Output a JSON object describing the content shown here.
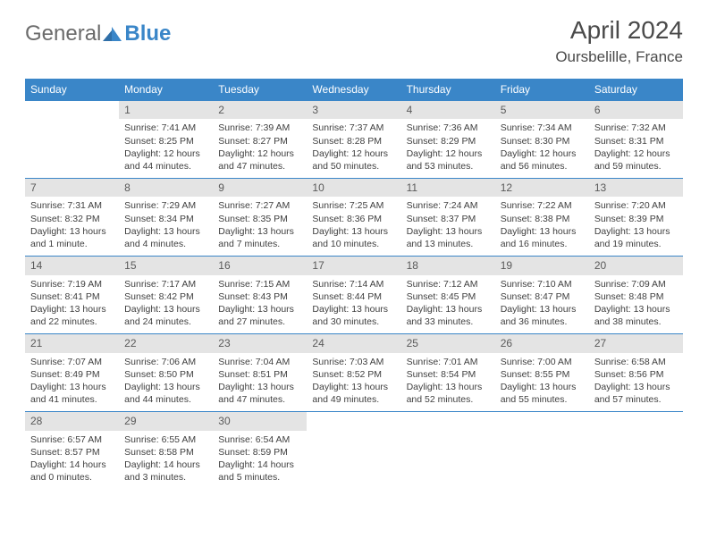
{
  "brand": {
    "part1": "General",
    "part2": "Blue"
  },
  "title": "April 2024",
  "location": "Oursbelille, France",
  "dow_bg": "#3a86c8",
  "dow_color": "#ffffff",
  "daynum_bg": "#e4e4e4",
  "border_color": "#3a86c8",
  "text_color": "#3f3f3f",
  "dow": [
    "Sunday",
    "Monday",
    "Tuesday",
    "Wednesday",
    "Thursday",
    "Friday",
    "Saturday"
  ],
  "weeks": [
    [
      null,
      {
        "n": "1",
        "sr": "7:41 AM",
        "ss": "8:25 PM",
        "dl": "12 hours and 44 minutes."
      },
      {
        "n": "2",
        "sr": "7:39 AM",
        "ss": "8:27 PM",
        "dl": "12 hours and 47 minutes."
      },
      {
        "n": "3",
        "sr": "7:37 AM",
        "ss": "8:28 PM",
        "dl": "12 hours and 50 minutes."
      },
      {
        "n": "4",
        "sr": "7:36 AM",
        "ss": "8:29 PM",
        "dl": "12 hours and 53 minutes."
      },
      {
        "n": "5",
        "sr": "7:34 AM",
        "ss": "8:30 PM",
        "dl": "12 hours and 56 minutes."
      },
      {
        "n": "6",
        "sr": "7:32 AM",
        "ss": "8:31 PM",
        "dl": "12 hours and 59 minutes."
      }
    ],
    [
      {
        "n": "7",
        "sr": "7:31 AM",
        "ss": "8:32 PM",
        "dl": "13 hours and 1 minute."
      },
      {
        "n": "8",
        "sr": "7:29 AM",
        "ss": "8:34 PM",
        "dl": "13 hours and 4 minutes."
      },
      {
        "n": "9",
        "sr": "7:27 AM",
        "ss": "8:35 PM",
        "dl": "13 hours and 7 minutes."
      },
      {
        "n": "10",
        "sr": "7:25 AM",
        "ss": "8:36 PM",
        "dl": "13 hours and 10 minutes."
      },
      {
        "n": "11",
        "sr": "7:24 AM",
        "ss": "8:37 PM",
        "dl": "13 hours and 13 minutes."
      },
      {
        "n": "12",
        "sr": "7:22 AM",
        "ss": "8:38 PM",
        "dl": "13 hours and 16 minutes."
      },
      {
        "n": "13",
        "sr": "7:20 AM",
        "ss": "8:39 PM",
        "dl": "13 hours and 19 minutes."
      }
    ],
    [
      {
        "n": "14",
        "sr": "7:19 AM",
        "ss": "8:41 PM",
        "dl": "13 hours and 22 minutes."
      },
      {
        "n": "15",
        "sr": "7:17 AM",
        "ss": "8:42 PM",
        "dl": "13 hours and 24 minutes."
      },
      {
        "n": "16",
        "sr": "7:15 AM",
        "ss": "8:43 PM",
        "dl": "13 hours and 27 minutes."
      },
      {
        "n": "17",
        "sr": "7:14 AM",
        "ss": "8:44 PM",
        "dl": "13 hours and 30 minutes."
      },
      {
        "n": "18",
        "sr": "7:12 AM",
        "ss": "8:45 PM",
        "dl": "13 hours and 33 minutes."
      },
      {
        "n": "19",
        "sr": "7:10 AM",
        "ss": "8:47 PM",
        "dl": "13 hours and 36 minutes."
      },
      {
        "n": "20",
        "sr": "7:09 AM",
        "ss": "8:48 PM",
        "dl": "13 hours and 38 minutes."
      }
    ],
    [
      {
        "n": "21",
        "sr": "7:07 AM",
        "ss": "8:49 PM",
        "dl": "13 hours and 41 minutes."
      },
      {
        "n": "22",
        "sr": "7:06 AM",
        "ss": "8:50 PM",
        "dl": "13 hours and 44 minutes."
      },
      {
        "n": "23",
        "sr": "7:04 AM",
        "ss": "8:51 PM",
        "dl": "13 hours and 47 minutes."
      },
      {
        "n": "24",
        "sr": "7:03 AM",
        "ss": "8:52 PM",
        "dl": "13 hours and 49 minutes."
      },
      {
        "n": "25",
        "sr": "7:01 AM",
        "ss": "8:54 PM",
        "dl": "13 hours and 52 minutes."
      },
      {
        "n": "26",
        "sr": "7:00 AM",
        "ss": "8:55 PM",
        "dl": "13 hours and 55 minutes."
      },
      {
        "n": "27",
        "sr": "6:58 AM",
        "ss": "8:56 PM",
        "dl": "13 hours and 57 minutes."
      }
    ],
    [
      {
        "n": "28",
        "sr": "6:57 AM",
        "ss": "8:57 PM",
        "dl": "14 hours and 0 minutes."
      },
      {
        "n": "29",
        "sr": "6:55 AM",
        "ss": "8:58 PM",
        "dl": "14 hours and 3 minutes."
      },
      {
        "n": "30",
        "sr": "6:54 AM",
        "ss": "8:59 PM",
        "dl": "14 hours and 5 minutes."
      },
      null,
      null,
      null,
      null
    ]
  ],
  "labels": {
    "sunrise": "Sunrise:",
    "sunset": "Sunset:",
    "daylight": "Daylight:"
  }
}
